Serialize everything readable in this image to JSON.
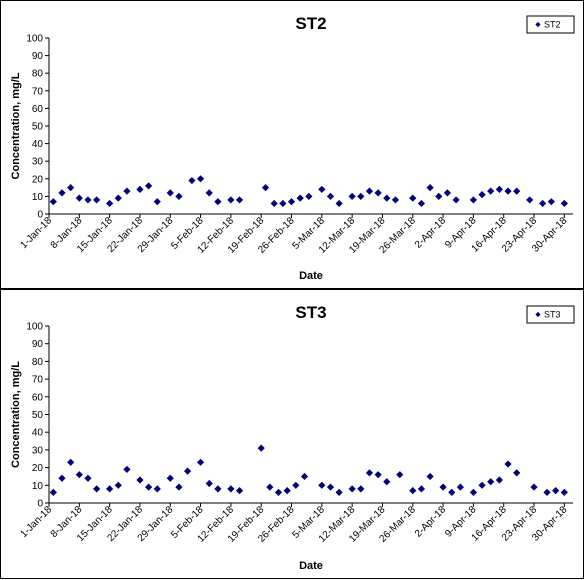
{
  "chart_data": [
    {
      "type": "scatter",
      "title": "ST2",
      "xlabel": "Date",
      "ylabel": "Concentration, mg/L",
      "ylim": [
        0,
        100
      ],
      "yticks": [
        0,
        10,
        20,
        30,
        40,
        50,
        60,
        70,
        80,
        90,
        100
      ],
      "xlim": [
        "2018-01-01",
        "2018-05-02"
      ],
      "xtick_labels": [
        "1-Jan-18",
        "8-Jan-18",
        "15-Jan-18",
        "22-Jan-18",
        "29-Jan-18",
        "5-Feb-18",
        "12-Feb-18",
        "19-Feb-18",
        "26-Feb-18",
        "5-Mar-18",
        "12-Mar-18",
        "19-Mar-18",
        "26-Mar-18",
        "2-Apr-18",
        "9-Apr-18",
        "16-Apr-18",
        "23-Apr-18",
        "30-Apr-18"
      ],
      "grid": false,
      "legend": "top-right",
      "marker": "diamond",
      "color": "#00007a",
      "series": [
        {
          "name": "ST2",
          "x": [
            "2018-01-02",
            "2018-01-04",
            "2018-01-06",
            "2018-01-08",
            "2018-01-10",
            "2018-01-12",
            "2018-01-15",
            "2018-01-17",
            "2018-01-19",
            "2018-01-22",
            "2018-01-24",
            "2018-01-26",
            "2018-01-29",
            "2018-01-31",
            "2018-02-03",
            "2018-02-05",
            "2018-02-07",
            "2018-02-09",
            "2018-02-12",
            "2018-02-14",
            "2018-02-20",
            "2018-02-22",
            "2018-02-24",
            "2018-02-26",
            "2018-02-28",
            "2018-03-02",
            "2018-03-05",
            "2018-03-07",
            "2018-03-09",
            "2018-03-12",
            "2018-03-14",
            "2018-03-16",
            "2018-03-18",
            "2018-03-20",
            "2018-03-22",
            "2018-03-26",
            "2018-03-28",
            "2018-03-30",
            "2018-04-01",
            "2018-04-03",
            "2018-04-05",
            "2018-04-09",
            "2018-04-11",
            "2018-04-13",
            "2018-04-15",
            "2018-04-17",
            "2018-04-19",
            "2018-04-22",
            "2018-04-25",
            "2018-04-27",
            "2018-04-30"
          ],
          "y": [
            7,
            12,
            15,
            9,
            8,
            8,
            6,
            9,
            13,
            14,
            16,
            7,
            12,
            10,
            19,
            20,
            12,
            7,
            8,
            8,
            15,
            6,
            6,
            7,
            9,
            10,
            14,
            10,
            6,
            10,
            10,
            13,
            12,
            9,
            8,
            9,
            6,
            15,
            10,
            12,
            8,
            8,
            11,
            13,
            14,
            13,
            13,
            8,
            6,
            7,
            6
          ]
        }
      ]
    },
    {
      "type": "scatter",
      "title": "ST3",
      "xlabel": "Date",
      "ylabel": "Concentration, mg/L",
      "ylim": [
        0,
        100
      ],
      "yticks": [
        0,
        10,
        20,
        30,
        40,
        50,
        60,
        70,
        80,
        90,
        100
      ],
      "xlim": [
        "2018-01-01",
        "2018-05-02"
      ],
      "xtick_labels": [
        "1-Jan-18",
        "8-Jan-18",
        "15-Jan-18",
        "22-Jan-18",
        "29-Jan-18",
        "5-Feb-18",
        "12-Feb-18",
        "19-Feb-18",
        "26-Feb-18",
        "5-Mar-18",
        "12-Mar-18",
        "19-Mar-18",
        "26-Mar-18",
        "2-Apr-18",
        "9-Apr-18",
        "16-Apr-18",
        "23-Apr-18",
        "30-Apr-18"
      ],
      "grid": false,
      "legend": "top-right",
      "marker": "diamond",
      "color": "#00007a",
      "series": [
        {
          "name": "ST3",
          "x": [
            "2018-01-02",
            "2018-01-04",
            "2018-01-06",
            "2018-01-08",
            "2018-01-10",
            "2018-01-12",
            "2018-01-15",
            "2018-01-17",
            "2018-01-19",
            "2018-01-22",
            "2018-01-24",
            "2018-01-26",
            "2018-01-29",
            "2018-01-31",
            "2018-02-02",
            "2018-02-05",
            "2018-02-07",
            "2018-02-09",
            "2018-02-12",
            "2018-02-14",
            "2018-02-19",
            "2018-02-21",
            "2018-02-23",
            "2018-02-25",
            "2018-02-27",
            "2018-03-01",
            "2018-03-05",
            "2018-03-07",
            "2018-03-09",
            "2018-03-12",
            "2018-03-14",
            "2018-03-16",
            "2018-03-18",
            "2018-03-20",
            "2018-03-23",
            "2018-03-26",
            "2018-03-28",
            "2018-03-30",
            "2018-04-02",
            "2018-04-04",
            "2018-04-06",
            "2018-04-09",
            "2018-04-11",
            "2018-04-13",
            "2018-04-15",
            "2018-04-17",
            "2018-04-19",
            "2018-04-23",
            "2018-04-26",
            "2018-04-28",
            "2018-04-30"
          ],
          "y": [
            6,
            14,
            23,
            16,
            14,
            8,
            8,
            10,
            19,
            13,
            9,
            8,
            14,
            9,
            18,
            23,
            11,
            8,
            8,
            7,
            31,
            9,
            6,
            7,
            10,
            15,
            10,
            9,
            6,
            8,
            8,
            17,
            16,
            12,
            16,
            7,
            8,
            15,
            9,
            6,
            9,
            6,
            10,
            12,
            13,
            22,
            17,
            9,
            6,
            7,
            6
          ]
        }
      ]
    }
  ]
}
